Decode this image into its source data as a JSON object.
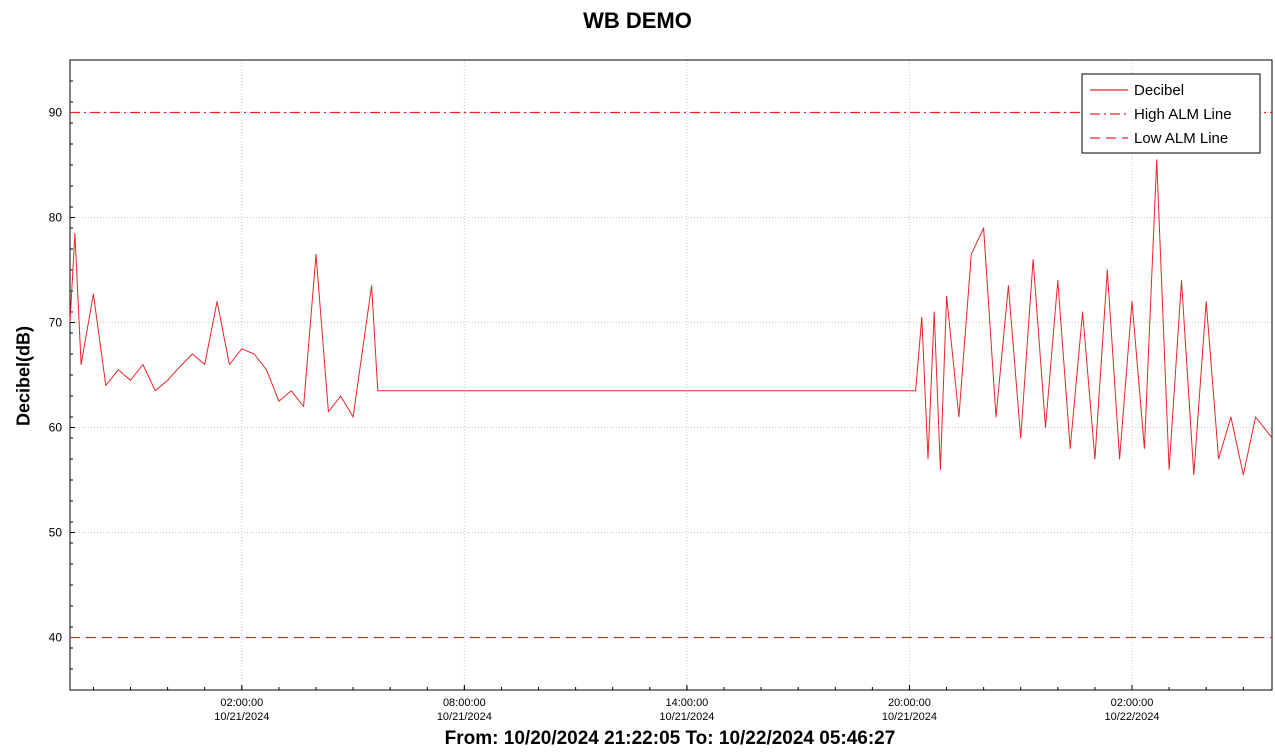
{
  "chart_data": {
    "type": "line",
    "title": "WB DEMO",
    "xlabel": "From: 10/20/2024 21:22:05 To: 10/22/2024 05:46:27",
    "ylabel": "Decibel(dB)",
    "xlim": [
      "10/20/2024 21:22:05",
      "10/22/2024 05:46:27"
    ],
    "ylim": [
      35,
      95
    ],
    "y_ticks": [
      40,
      50,
      60,
      70,
      80,
      90
    ],
    "x_ticks": [
      {
        "time": "02:00:00",
        "date": "10/21/2024"
      },
      {
        "time": "08:00:00",
        "date": "10/21/2024"
      },
      {
        "time": "14:00:00",
        "date": "10/21/2024"
      },
      {
        "time": "20:00:00",
        "date": "10/21/2024"
      },
      {
        "time": "02:00:00",
        "date": "10/22/2024"
      }
    ],
    "grid": true,
    "legend_position": "top-right",
    "series": [
      {
        "name": "Decibel",
        "color": "#e8252a",
        "style": "solid",
        "x": [
          "10/20/2024 21:22:05",
          "10/20/2024 21:30:00",
          "10/20/2024 21:40:00",
          "10/20/2024 22:00:00",
          "10/20/2024 22:20:00",
          "10/20/2024 22:40:00",
          "10/20/2024 23:00:00",
          "10/20/2024 23:20:00",
          "10/20/2024 23:40:00",
          "10/21/2024 00:00:00",
          "10/21/2024 00:20:00",
          "10/21/2024 00:40:00",
          "10/21/2024 01:00:00",
          "10/21/2024 01:20:00",
          "10/21/2024 01:40:00",
          "10/21/2024 02:00:00",
          "10/21/2024 02:20:00",
          "10/21/2024 02:40:00",
          "10/21/2024 03:00:00",
          "10/21/2024 03:20:00",
          "10/21/2024 03:40:00",
          "10/21/2024 04:00:00",
          "10/21/2024 04:20:00",
          "10/21/2024 04:40:00",
          "10/21/2024 05:00:00",
          "10/21/2024 05:30:00",
          "10/21/2024 05:40:00",
          "10/21/2024 05:50:00",
          "10/21/2024 20:10:00",
          "10/21/2024 20:20:00",
          "10/21/2024 20:30:00",
          "10/21/2024 20:40:00",
          "10/21/2024 20:50:00",
          "10/21/2024 21:00:00",
          "10/21/2024 21:20:00",
          "10/21/2024 21:40:00",
          "10/21/2024 22:00:00",
          "10/21/2024 22:20:00",
          "10/21/2024 22:40:00",
          "10/21/2024 23:00:00",
          "10/21/2024 23:20:00",
          "10/21/2024 23:40:00",
          "10/22/2024 00:00:00",
          "10/22/2024 00:20:00",
          "10/22/2024 00:40:00",
          "10/22/2024 01:00:00",
          "10/22/2024 01:20:00",
          "10/22/2024 01:40:00",
          "10/22/2024 02:00:00",
          "10/22/2024 02:20:00",
          "10/22/2024 02:40:00",
          "10/22/2024 03:00:00",
          "10/22/2024 03:20:00",
          "10/22/2024 03:40:00",
          "10/22/2024 04:00:00",
          "10/22/2024 04:20:00",
          "10/22/2024 04:40:00",
          "10/22/2024 05:00:00",
          "10/22/2024 05:20:00",
          "10/22/2024 05:46:27"
        ],
        "y": [
          70,
          78.5,
          66,
          72.7,
          64,
          65.5,
          64.5,
          66,
          63.5,
          64.5,
          65.8,
          67,
          66,
          72,
          66,
          67.5,
          67,
          65.5,
          62.5,
          63.5,
          62,
          76.5,
          61.5,
          63,
          61,
          73.5,
          63.5,
          63.5,
          63.5,
          70.5,
          57,
          71,
          56,
          72.5,
          61,
          76.5,
          79,
          61,
          73.5,
          59,
          76,
          60,
          74,
          58,
          71,
          57,
          75,
          57,
          72,
          58,
          85.5,
          56,
          74,
          55.5,
          72,
          57,
          61,
          55.5,
          61,
          59
        ]
      },
      {
        "name": "High ALM Line",
        "color": "#e8252a",
        "style": "dashdot",
        "value": 90
      },
      {
        "name": "Low ALM Line",
        "color": "#e8252a",
        "style": "dashed",
        "value": 40
      }
    ]
  }
}
